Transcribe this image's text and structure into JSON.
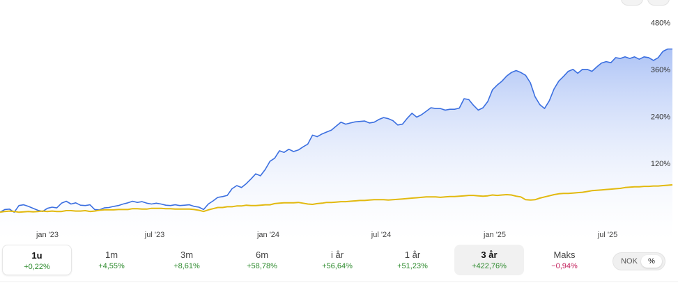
{
  "chart_data": {
    "type": "area",
    "y_unit": "%",
    "ylim": [
      -40,
      500
    ],
    "yticks": [
      120,
      240,
      360,
      480
    ],
    "ytick_labels": [
      "120%",
      "240%",
      "360%",
      "480%"
    ],
    "xtick_labels": [
      "jan '23",
      "jul '23",
      "jan '24",
      "jul '24",
      "jan '25",
      "jul '25"
    ],
    "grid": false,
    "colors": {
      "primary": "#3b6fe0",
      "fill_top": "#a9c0f5",
      "benchmark": "#e2b90f"
    },
    "series": [
      {
        "values": [
          -5,
          2,
          3,
          -5,
          12,
          14,
          10,
          5,
          0,
          -3,
          5,
          8,
          6,
          18,
          23,
          16,
          19,
          13,
          12,
          14,
          2,
          1,
          6,
          7,
          10,
          12,
          16,
          19,
          23,
          20,
          22,
          18,
          16,
          18,
          16,
          13,
          12,
          14,
          12,
          13,
          14,
          10,
          8,
          2,
          16,
          24,
          33,
          35,
          38,
          55,
          63,
          58,
          68,
          80,
          93,
          88,
          104,
          125,
          133,
          152,
          148,
          156,
          150,
          154,
          162,
          169,
          192,
          188,
          195,
          200,
          205,
          215,
          225,
          220,
          223,
          226,
          227,
          228,
          223,
          225,
          232,
          237,
          234,
          229,
          218,
          220,
          235,
          248,
          238,
          244,
          253,
          262,
          260,
          260,
          256,
          258,
          258,
          261,
          285,
          283,
          268,
          256,
          262,
          278,
          308,
          320,
          330,
          343,
          352,
          357,
          352,
          345,
          326,
          290,
          270,
          260,
          280,
          310,
          330,
          342,
          355,
          360,
          350,
          360,
          360,
          355,
          366,
          376,
          380,
          377,
          390,
          388,
          392,
          388,
          392,
          386,
          392,
          390,
          383,
          390,
          406,
          412,
          412
        ]
      },
      {
        "values": [
          -5,
          -3,
          -2,
          -3,
          -5,
          -4,
          -3,
          -4,
          -3,
          -2,
          -3,
          -2,
          -3,
          -3,
          -1,
          -1,
          -2,
          -2,
          -1,
          -3,
          -2,
          0,
          1,
          1,
          1,
          2,
          2,
          2,
          4,
          4,
          3,
          3,
          5,
          5,
          5,
          4,
          4,
          3,
          3,
          3,
          3,
          2,
          0,
          -3,
          1,
          4,
          7,
          7,
          9,
          9,
          11,
          11,
          13,
          12,
          12,
          13,
          14,
          14,
          17,
          18,
          19,
          19,
          19,
          20,
          18,
          16,
          15,
          17,
          18,
          20,
          20,
          21,
          22,
          22,
          23,
          24,
          25,
          25,
          26,
          27,
          27,
          27,
          26,
          27,
          28,
          29,
          30,
          31,
          32,
          33,
          34,
          34,
          34,
          33,
          34,
          35,
          35,
          36,
          37,
          38,
          38,
          37,
          36,
          37,
          39,
          38,
          39,
          40,
          39,
          36,
          34,
          27,
          26,
          27,
          31,
          34,
          37,
          40,
          42,
          43,
          43,
          44,
          45,
          46,
          48,
          50,
          51,
          52,
          53,
          54,
          55,
          56,
          58,
          59,
          60,
          60,
          61,
          61,
          62,
          62,
          63,
          64,
          65
        ]
      }
    ]
  },
  "periods": [
    {
      "label": "1u",
      "value": "+0,22%",
      "sign": "pos",
      "state": "outline"
    },
    {
      "label": "1m",
      "value": "+4,55%",
      "sign": "pos",
      "state": ""
    },
    {
      "label": "3m",
      "value": "+8,61%",
      "sign": "pos",
      "state": ""
    },
    {
      "label": "6m",
      "value": "+58,78%",
      "sign": "pos",
      "state": ""
    },
    {
      "label": "i år",
      "value": "+56,64%",
      "sign": "pos",
      "state": ""
    },
    {
      "label": "1 år",
      "value": "+51,23%",
      "sign": "pos",
      "state": ""
    },
    {
      "label": "3 år",
      "value": "+422,76%",
      "sign": "pos",
      "state": "fill"
    },
    {
      "label": "Maks",
      "value": "−0,94%",
      "sign": "neg",
      "state": ""
    }
  ],
  "currency_toggle": {
    "option_a": "NOK",
    "option_b": "%",
    "active": "b"
  }
}
